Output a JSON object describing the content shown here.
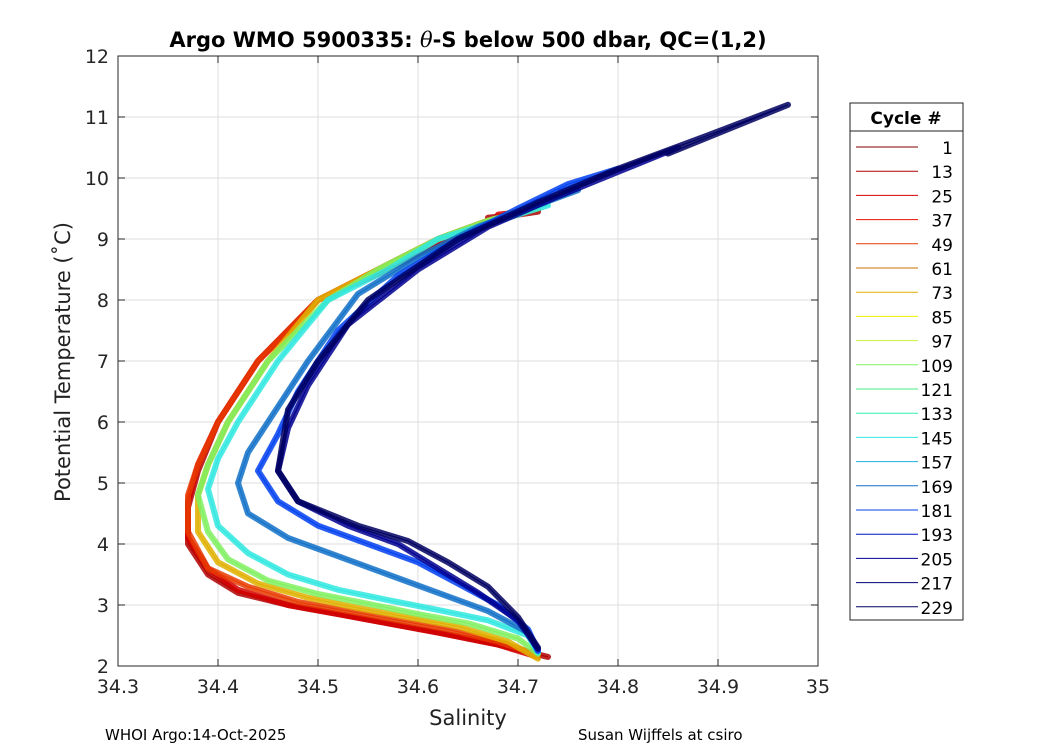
{
  "chart_data": {
    "type": "line",
    "title_prefix": "Argo WMO 5900335: ",
    "title_theta": "θ",
    "title_suffix": "-S below 500 dbar,  QC=(1,2)",
    "xlabel": "Salinity",
    "ylabel": "Potential Temperature (˚C)",
    "xlim": [
      34.3,
      35.0
    ],
    "ylim": [
      2,
      12
    ],
    "xticks": [
      "34.3",
      "34.4",
      "34.5",
      "34.6",
      "34.7",
      "34.8",
      "34.9",
      "35"
    ],
    "yticks": [
      "2",
      "3",
      "4",
      "5",
      "6",
      "7",
      "8",
      "9",
      "10",
      "11",
      "12"
    ],
    "grid": true,
    "legend": {
      "title": "Cycle #",
      "placement": "right",
      "entries": [
        {
          "label": "1",
          "color": "#800000"
        },
        {
          "label": "13",
          "color": "#b00000"
        },
        {
          "label": "25",
          "color": "#d40000"
        },
        {
          "label": "37",
          "color": "#e81000"
        },
        {
          "label": "49",
          "color": "#e83a00"
        },
        {
          "label": "61",
          "color": "#c87000"
        },
        {
          "label": "73",
          "color": "#e0b000"
        },
        {
          "label": "85",
          "color": "#f0f000"
        },
        {
          "label": "97",
          "color": "#c8f040"
        },
        {
          "label": "109",
          "color": "#80f060"
        },
        {
          "label": "121",
          "color": "#40f080"
        },
        {
          "label": "133",
          "color": "#30f0b0"
        },
        {
          "label": "145",
          "color": "#30e8e0"
        },
        {
          "label": "157",
          "color": "#20b0e0"
        },
        {
          "label": "169",
          "color": "#1070c8"
        },
        {
          "label": "181",
          "color": "#0040f0"
        },
        {
          "label": "193",
          "color": "#0010c0"
        },
        {
          "label": "205",
          "color": "#000090"
        },
        {
          "label": "217",
          "color": "#000070"
        },
        {
          "label": "229",
          "color": "#000060"
        }
      ]
    },
    "series": [
      {
        "color": "#b00000",
        "x": [
          34.67,
          34.7,
          34.72,
          34.72,
          34.68,
          34.63,
          34.57,
          34.5,
          34.44,
          34.4,
          34.38,
          34.37,
          34.37,
          34.39,
          34.42,
          34.47,
          34.52,
          34.57,
          34.62,
          34.68,
          34.73
        ],
        "y": [
          9.35,
          9.4,
          9.45,
          9.5,
          9.3,
          9.0,
          8.5,
          8.0,
          7.0,
          6.0,
          5.2,
          4.6,
          4.0,
          3.5,
          3.2,
          3.0,
          2.85,
          2.7,
          2.55,
          2.35,
          2.15
        ]
      },
      {
        "color": "#d40000",
        "x": [
          34.68,
          34.71,
          34.72,
          34.67,
          34.62,
          34.56,
          34.5,
          34.44,
          34.4,
          34.38,
          34.37,
          34.37,
          34.39,
          34.42,
          34.47,
          34.52,
          34.57,
          34.62,
          34.68,
          34.72
        ],
        "y": [
          9.4,
          9.45,
          9.5,
          9.3,
          9.0,
          8.5,
          8.0,
          7.0,
          6.0,
          5.3,
          4.7,
          4.1,
          3.6,
          3.25,
          3.0,
          2.85,
          2.7,
          2.55,
          2.35,
          2.15
        ]
      },
      {
        "color": "#e83a00",
        "x": [
          34.69,
          34.72,
          34.67,
          34.62,
          34.56,
          34.5,
          34.44,
          34.4,
          34.38,
          34.37,
          34.37,
          34.39,
          34.43,
          34.48,
          34.53,
          34.58,
          34.63,
          34.68,
          34.72
        ],
        "y": [
          9.42,
          9.5,
          9.3,
          9.0,
          8.5,
          8.0,
          7.0,
          6.0,
          5.3,
          4.8,
          4.2,
          3.6,
          3.3,
          3.05,
          2.9,
          2.75,
          2.6,
          2.4,
          2.18
        ]
      },
      {
        "color": "#e0b000",
        "x": [
          34.69,
          34.72,
          34.67,
          34.62,
          34.56,
          34.5,
          34.45,
          34.41,
          34.39,
          34.38,
          34.38,
          34.4,
          34.44,
          34.49,
          34.54,
          34.59,
          34.64,
          34.69,
          34.72
        ],
        "y": [
          9.42,
          9.5,
          9.3,
          9.0,
          8.5,
          8.0,
          7.0,
          6.0,
          5.3,
          4.8,
          4.2,
          3.7,
          3.35,
          3.12,
          2.95,
          2.8,
          2.65,
          2.4,
          2.12
        ]
      },
      {
        "color": "#80f060",
        "x": [
          34.7,
          34.72,
          34.67,
          34.62,
          34.56,
          34.51,
          34.45,
          34.41,
          34.39,
          34.38,
          34.39,
          34.41,
          34.45,
          34.5,
          34.55,
          34.6,
          34.65,
          34.7,
          34.72
        ],
        "y": [
          9.45,
          9.52,
          9.3,
          9.0,
          8.5,
          8.0,
          7.0,
          6.0,
          5.3,
          4.8,
          4.2,
          3.75,
          3.4,
          3.18,
          3.02,
          2.85,
          2.7,
          2.45,
          2.2
        ]
      },
      {
        "color": "#30e8e0",
        "x": [
          34.7,
          34.73,
          34.68,
          34.62,
          34.57,
          34.51,
          34.46,
          34.42,
          34.4,
          34.39,
          34.4,
          34.43,
          34.47,
          34.52,
          34.57,
          34.62,
          34.67,
          34.71,
          34.72
        ],
        "y": [
          9.47,
          9.55,
          9.3,
          9.0,
          8.5,
          8.0,
          7.0,
          6.0,
          5.4,
          4.9,
          4.3,
          3.85,
          3.5,
          3.25,
          3.08,
          2.92,
          2.75,
          2.5,
          2.22
        ]
      },
      {
        "color": "#1070c8",
        "x": [
          34.72,
          34.76,
          34.71,
          34.66,
          34.6,
          34.54,
          34.49,
          34.45,
          34.43,
          34.42,
          34.43,
          34.47,
          34.52,
          34.57,
          34.62,
          34.67,
          34.71,
          34.72
        ],
        "y": [
          9.6,
          9.8,
          9.5,
          9.2,
          8.7,
          8.1,
          7.0,
          6.0,
          5.5,
          5.0,
          4.5,
          4.1,
          3.8,
          3.5,
          3.2,
          2.9,
          2.55,
          2.25
        ]
      },
      {
        "color": "#0040f0",
        "x": [
          34.74,
          34.8,
          34.75,
          34.7,
          34.64,
          34.58,
          34.52,
          34.48,
          34.46,
          34.44,
          34.46,
          34.5,
          34.55,
          34.6,
          34.64,
          34.68,
          34.71,
          34.72
        ],
        "y": [
          9.8,
          10.15,
          9.9,
          9.5,
          9.0,
          8.4,
          7.5,
          6.5,
          5.8,
          5.2,
          4.7,
          4.3,
          4.0,
          3.7,
          3.35,
          3.0,
          2.6,
          2.25
        ]
      },
      {
        "color": "#000090",
        "x": [
          34.78,
          34.86,
          34.8,
          34.74,
          34.67,
          34.6,
          34.53,
          34.49,
          34.47,
          34.46,
          34.48,
          34.53,
          34.58,
          34.62,
          34.66,
          34.7,
          34.72
        ],
        "y": [
          10.0,
          10.5,
          10.1,
          9.7,
          9.2,
          8.5,
          7.6,
          6.6,
          5.9,
          5.2,
          4.7,
          4.3,
          4.0,
          3.6,
          3.2,
          2.75,
          2.28
        ]
      },
      {
        "color": "#000060",
        "x": [
          34.85,
          34.97,
          34.89,
          34.8,
          34.72,
          34.64,
          34.55,
          34.5,
          34.47,
          34.46,
          34.48,
          34.54,
          34.59,
          34.63,
          34.67,
          34.7,
          34.72
        ],
        "y": [
          10.4,
          11.2,
          10.7,
          10.15,
          9.6,
          9.0,
          8.0,
          7.0,
          6.2,
          5.2,
          4.7,
          4.3,
          4.05,
          3.7,
          3.3,
          2.8,
          2.3
        ]
      }
    ]
  },
  "footer": {
    "left": "WHOI Argo:14-Oct-2025",
    "right": "Susan Wijffels at csiro"
  }
}
